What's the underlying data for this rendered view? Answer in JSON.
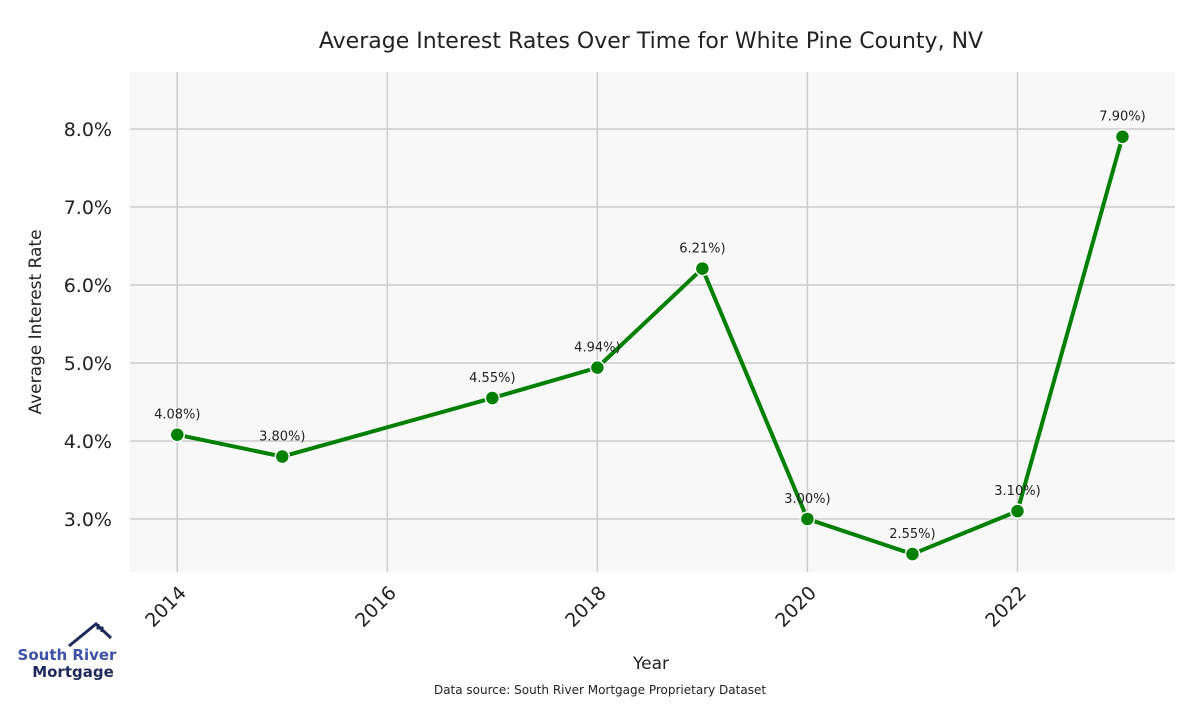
{
  "chart_data": {
    "type": "line",
    "title": "Average Interest Rates Over Time for White Pine County, NV",
    "xlabel": "Year",
    "ylabel": "Average Interest Rate",
    "x": [
      2014,
      2015,
      2017,
      2018,
      2019,
      2020,
      2021,
      2022,
      2023
    ],
    "series": [
      {
        "name": "Average Interest Rate",
        "values": [
          4.08,
          3.8,
          4.55,
          4.94,
          6.21,
          3.0,
          2.55,
          3.1,
          7.9
        ],
        "labels": [
          "4.08%)",
          "3.80%)",
          "4.55%)",
          "4.94%)",
          "6.21%)",
          "3.00%)",
          "2.55%)",
          "3.10%)",
          "7.90%)"
        ]
      }
    ],
    "xticks": [
      2014,
      2016,
      2018,
      2020,
      2022
    ],
    "xtick_labels": [
      "2014",
      "2016",
      "2018",
      "2020",
      "2022"
    ],
    "yticks": [
      3,
      4,
      5,
      6,
      7,
      8
    ],
    "ytick_labels": [
      "3.0%",
      "4.0%",
      "5.0%",
      "6.0%",
      "7.0%",
      "8.0%"
    ],
    "xlim": [
      2013.55,
      2023.5
    ],
    "ylim": [
      2.32,
      8.73
    ],
    "grid": true,
    "line_color": "#008000"
  },
  "footer": {
    "source": "Data source: South River Mortgage Proprietary Dataset"
  },
  "logo": {
    "line1": "South River",
    "line2": "Mortgage"
  }
}
